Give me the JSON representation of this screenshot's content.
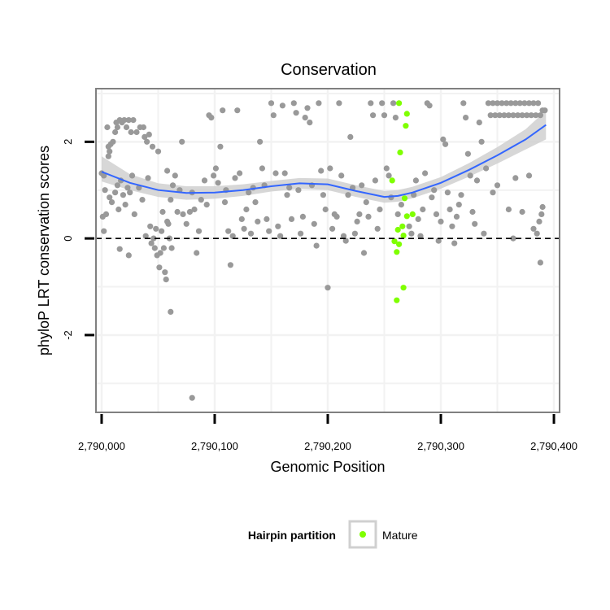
{
  "chart_data": {
    "type": "scatter",
    "title": "Conservation",
    "xlabel": "Genomic Position",
    "ylabel": "phyloP LRT conservation scores",
    "xlim": [
      2789995,
      2790405
    ],
    "ylim": [
      -3.6,
      3.1
    ],
    "x_ticks": [
      2790000,
      2790100,
      2790200,
      2790300,
      2790400
    ],
    "x_tick_labels": [
      "2,790,000",
      "2,790,100",
      "2,790,200",
      "2,790,300",
      "2,790,400"
    ],
    "y_ticks": [
      -2,
      0,
      2
    ],
    "y_tick_labels": [
      "-2",
      "0",
      "2"
    ],
    "reference_line": {
      "y": 0,
      "style": "dashed"
    },
    "grid": true,
    "colors": {
      "other": "#999999",
      "mature": "#7fff00",
      "smooth": "#3366ff",
      "ribbon": "#d0d0d0",
      "panel_border": "#808080",
      "grid": "#f2f2f2"
    },
    "legend": {
      "title": "Hairpin partition",
      "position": "bottom",
      "entries": [
        {
          "label": "Mature",
          "color": "#7fff00"
        }
      ]
    },
    "series": [
      {
        "name": "Mature",
        "points": [
          [
            2790263,
            2.8
          ],
          [
            2790270,
            2.58
          ],
          [
            2790269,
            2.33
          ],
          [
            2790264,
            1.78
          ],
          [
            2790257,
            1.2
          ],
          [
            2790268,
            0.83
          ],
          [
            2790275,
            0.5
          ],
          [
            2790270,
            0.46
          ],
          [
            2790266,
            0.25
          ],
          [
            2790262,
            0.18
          ],
          [
            2790267,
            0.06
          ],
          [
            2790259,
            -0.06
          ],
          [
            2790263,
            -0.12
          ],
          [
            2790261,
            -0.28
          ],
          [
            2790267,
            -1.02
          ],
          [
            2790261,
            -1.28
          ]
        ]
      },
      {
        "name": "",
        "points": [
          [
            2790000,
            1.35
          ],
          [
            2790002,
            1.3
          ],
          [
            2790003,
            1.0
          ],
          [
            2790004,
            0.5
          ],
          [
            2790001,
            0.45
          ],
          [
            2790002,
            0.15
          ],
          [
            2790005,
            2.3
          ],
          [
            2790006,
            1.9
          ],
          [
            2790007,
            1.8
          ],
          [
            2790006,
            1.7
          ],
          [
            2790007,
            0.85
          ],
          [
            2790009,
            0.75
          ],
          [
            2790008,
            1.95
          ],
          [
            2790010,
            2.0
          ],
          [
            2790012,
            2.2
          ],
          [
            2790013,
            2.4
          ],
          [
            2790014,
            2.3
          ],
          [
            2790016,
            2.45
          ],
          [
            2790018,
            2.4
          ],
          [
            2790020,
            2.45
          ],
          [
            2790022,
            2.3
          ],
          [
            2790024,
            2.45
          ],
          [
            2790026,
            2.2
          ],
          [
            2790012,
            0.95
          ],
          [
            2790014,
            1.1
          ],
          [
            2790015,
            0.6
          ],
          [
            2790017,
            1.2
          ],
          [
            2790019,
            0.9
          ],
          [
            2790021,
            0.7
          ],
          [
            2790023,
            1.05
          ],
          [
            2790025,
            0.95
          ],
          [
            2790027,
            1.3
          ],
          [
            2790029,
            0.5
          ],
          [
            2790024,
            -0.35
          ],
          [
            2790016,
            -0.22
          ],
          [
            2790028,
            2.45
          ],
          [
            2790031,
            2.2
          ],
          [
            2790034,
            2.3
          ],
          [
            2790037,
            2.3
          ],
          [
            2790038,
            2.1
          ],
          [
            2790040,
            2.0
          ],
          [
            2790041,
            1.25
          ],
          [
            2790033,
            1.05
          ],
          [
            2790036,
            0.8
          ],
          [
            2790039,
            0.05
          ],
          [
            2790043,
            0.25
          ],
          [
            2790044,
            -0.1
          ],
          [
            2790046,
            0.0
          ],
          [
            2790047,
            -0.2
          ],
          [
            2790049,
            -0.35
          ],
          [
            2790051,
            -0.6
          ],
          [
            2790052,
            -0.3
          ],
          [
            2790053,
            0.15
          ],
          [
            2790055,
            -0.2
          ],
          [
            2790056,
            -0.7
          ],
          [
            2790057,
            -0.85
          ],
          [
            2790058,
            0.35
          ],
          [
            2790059,
            0.3
          ],
          [
            2790060,
            0.0
          ],
          [
            2790062,
            -0.2
          ],
          [
            2790048,
            0.2
          ],
          [
            2790042,
            2.15
          ],
          [
            2790045,
            1.9
          ],
          [
            2790050,
            1.8
          ],
          [
            2790054,
            0.55
          ],
          [
            2790058,
            1.4
          ],
          [
            2790061,
            0.8
          ],
          [
            2790063,
            1.1
          ],
          [
            2790065,
            1.3
          ],
          [
            2790067,
            0.55
          ],
          [
            2790069,
            1.0
          ],
          [
            2790071,
            2.0
          ],
          [
            2790072,
            0.5
          ],
          [
            2790075,
            0.3
          ],
          [
            2790078,
            0.55
          ],
          [
            2790080,
            0.95
          ],
          [
            2790082,
            0.6
          ],
          [
            2790084,
            -0.3
          ],
          [
            2790086,
            0.15
          ],
          [
            2790088,
            0.8
          ],
          [
            2790091,
            1.2
          ],
          [
            2790093,
            0.7
          ],
          [
            2790095,
            2.55
          ],
          [
            2790097,
            2.5
          ],
          [
            2790099,
            1.3
          ],
          [
            2790101,
            1.45
          ],
          [
            2790103,
            1.15
          ],
          [
            2790105,
            1.9
          ],
          [
            2790107,
            2.65
          ],
          [
            2790109,
            0.75
          ],
          [
            2790110,
            1.0
          ],
          [
            2790112,
            0.15
          ],
          [
            2790114,
            -0.55
          ],
          [
            2790116,
            0.05
          ],
          [
            2790118,
            1.25
          ],
          [
            2790120,
            2.65
          ],
          [
            2790122,
            1.35
          ],
          [
            2790124,
            0.4
          ],
          [
            2790126,
            0.2
          ],
          [
            2790128,
            0.6
          ],
          [
            2790130,
            0.95
          ],
          [
            2790132,
            0.1
          ],
          [
            2790134,
            1.05
          ],
          [
            2790136,
            0.75
          ],
          [
            2790138,
            0.35
          ],
          [
            2790140,
            2.0
          ],
          [
            2790142,
            1.45
          ],
          [
            2790144,
            1.1
          ],
          [
            2790146,
            0.4
          ],
          [
            2790148,
            0.15
          ],
          [
            2790150,
            2.8
          ],
          [
            2790152,
            2.55
          ],
          [
            2790154,
            1.35
          ],
          [
            2790156,
            0.25
          ],
          [
            2790158,
            0.05
          ],
          [
            2790160,
            2.75
          ],
          [
            2790162,
            1.35
          ],
          [
            2790164,
            0.9
          ],
          [
            2790166,
            1.05
          ],
          [
            2790168,
            0.4
          ],
          [
            2790170,
            2.8
          ],
          [
            2790172,
            2.6
          ],
          [
            2790174,
            1.0
          ],
          [
            2790176,
            0.1
          ],
          [
            2790178,
            0.45
          ],
          [
            2790180,
            2.5
          ],
          [
            2790182,
            2.7
          ],
          [
            2790184,
            2.4
          ],
          [
            2790186,
            1.1
          ],
          [
            2790188,
            0.3
          ],
          [
            2790190,
            -0.15
          ],
          [
            2790192,
            2.8
          ],
          [
            2790194,
            1.4
          ],
          [
            2790196,
            0.9
          ],
          [
            2790198,
            0.6
          ],
          [
            2790200,
            -1.02
          ],
          [
            2790202,
            1.45
          ],
          [
            2790204,
            0.2
          ],
          [
            2790206,
            0.5
          ],
          [
            2790208,
            0.45
          ],
          [
            2790210,
            2.8
          ],
          [
            2790212,
            1.3
          ],
          [
            2790214,
            0.05
          ],
          [
            2790216,
            -0.05
          ],
          [
            2790218,
            0.9
          ],
          [
            2790220,
            2.1
          ],
          [
            2790222,
            1.05
          ],
          [
            2790224,
            0.1
          ],
          [
            2790226,
            0.35
          ],
          [
            2790228,
            0.5
          ],
          [
            2790230,
            1.1
          ],
          [
            2790232,
            -0.3
          ],
          [
            2790234,
            0.75
          ],
          [
            2790236,
            0.45
          ],
          [
            2790238,
            2.8
          ],
          [
            2790240,
            2.55
          ],
          [
            2790242,
            1.2
          ],
          [
            2790244,
            0.2
          ],
          [
            2790246,
            0.6
          ],
          [
            2790248,
            2.8
          ],
          [
            2790250,
            2.55
          ],
          [
            2790252,
            1.45
          ],
          [
            2790254,
            1.3
          ],
          [
            2790256,
            0.85
          ],
          [
            2790258,
            2.8
          ],
          [
            2790260,
            2.5
          ],
          [
            2790262,
            0.5
          ],
          [
            2790265,
            0.7
          ],
          [
            2790272,
            0.25
          ],
          [
            2790274,
            0.1
          ],
          [
            2790276,
            0.9
          ],
          [
            2790278,
            1.2
          ],
          [
            2790280,
            0.4
          ],
          [
            2790282,
            0.05
          ],
          [
            2790284,
            0.6
          ],
          [
            2790286,
            1.35
          ],
          [
            2790288,
            2.8
          ],
          [
            2790290,
            2.75
          ],
          [
            2790292,
            0.85
          ],
          [
            2790294,
            1.0
          ],
          [
            2790296,
            0.5
          ],
          [
            2790298,
            -0.05
          ],
          [
            2790300,
            0.35
          ],
          [
            2790302,
            2.05
          ],
          [
            2790304,
            1.95
          ],
          [
            2790306,
            0.95
          ],
          [
            2790308,
            0.6
          ],
          [
            2790310,
            0.25
          ],
          [
            2790312,
            -0.1
          ],
          [
            2790314,
            0.45
          ],
          [
            2790316,
            0.7
          ],
          [
            2790318,
            0.9
          ],
          [
            2790320,
            2.8
          ],
          [
            2790322,
            2.5
          ],
          [
            2790324,
            1.75
          ],
          [
            2790326,
            1.3
          ],
          [
            2790328,
            0.55
          ],
          [
            2790330,
            0.3
          ],
          [
            2790332,
            1.2
          ],
          [
            2790334,
            2.4
          ],
          [
            2790336,
            2.0
          ],
          [
            2790338,
            0.1
          ],
          [
            2790340,
            1.45
          ],
          [
            2790342,
            2.8
          ],
          [
            2790344,
            2.55
          ],
          [
            2790346,
            2.8
          ],
          [
            2790348,
            2.55
          ],
          [
            2790350,
            2.8
          ],
          [
            2790352,
            2.55
          ],
          [
            2790354,
            2.8
          ],
          [
            2790356,
            2.55
          ],
          [
            2790358,
            2.8
          ],
          [
            2790360,
            2.55
          ],
          [
            2790362,
            2.8
          ],
          [
            2790364,
            2.55
          ],
          [
            2790366,
            2.8
          ],
          [
            2790368,
            2.55
          ],
          [
            2790370,
            2.8
          ],
          [
            2790372,
            2.55
          ],
          [
            2790374,
            2.8
          ],
          [
            2790376,
            2.55
          ],
          [
            2790378,
            2.8
          ],
          [
            2790380,
            2.55
          ],
          [
            2790382,
            2.8
          ],
          [
            2790384,
            2.55
          ],
          [
            2790386,
            2.8
          ],
          [
            2790388,
            2.55
          ],
          [
            2790390,
            2.65
          ],
          [
            2790392,
            2.65
          ],
          [
            2790360,
            0.6
          ],
          [
            2790364,
            0.0
          ],
          [
            2790366,
            1.25
          ],
          [
            2790372,
            0.55
          ],
          [
            2790378,
            1.3
          ],
          [
            2790382,
            0.2
          ],
          [
            2790385,
            0.1
          ],
          [
            2790387,
            0.35
          ],
          [
            2790389,
            0.5
          ],
          [
            2790390,
            0.65
          ],
          [
            2790388,
            -0.5
          ],
          [
            2790080,
            -3.3
          ],
          [
            2790061,
            -1.52
          ],
          [
            2790350,
            1.1
          ],
          [
            2790346,
            0.95
          ]
        ]
      }
    ],
    "smooth": {
      "x": [
        2790000,
        2790025,
        2790050,
        2790075,
        2790100,
        2790125,
        2790150,
        2790175,
        2790200,
        2790225,
        2790250,
        2790262,
        2790275,
        2790300,
        2790325,
        2790350,
        2790375,
        2790393
      ],
      "y": [
        1.38,
        1.15,
        1.0,
        0.94,
        0.95,
        1.0,
        1.08,
        1.14,
        1.12,
        0.98,
        0.86,
        0.88,
        0.95,
        1.15,
        1.42,
        1.72,
        2.05,
        2.35
      ],
      "ymin": [
        1.18,
        1.0,
        0.86,
        0.8,
        0.82,
        0.88,
        0.97,
        1.03,
        1.0,
        0.86,
        0.74,
        0.76,
        0.83,
        1.03,
        1.28,
        1.55,
        1.84,
        2.05
      ],
      "ymax": [
        1.7,
        1.33,
        1.14,
        1.08,
        1.08,
        1.12,
        1.19,
        1.25,
        1.24,
        1.1,
        0.98,
        1.0,
        1.07,
        1.27,
        1.56,
        1.89,
        2.26,
        2.65
      ]
    }
  }
}
